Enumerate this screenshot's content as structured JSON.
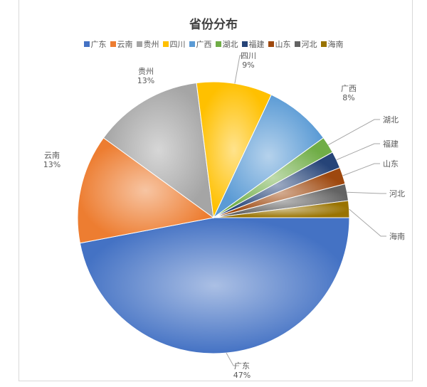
{
  "chart_data": {
    "type": "pie",
    "title": "省份分布",
    "legend_position": "top",
    "start_angle_deg": 90,
    "categories": [
      "广东",
      "云南",
      "贵州",
      "四川",
      "广西",
      "湖北",
      "福建",
      "山东",
      "河北",
      "海南"
    ],
    "values": [
      47,
      13,
      13,
      9,
      8,
      2,
      2,
      2,
      2,
      2
    ],
    "data_labels": [
      "广东\n47%",
      "云南\n13%",
      "贵州\n13%",
      "四川\n9%",
      "广西\n8%",
      "湖北",
      "福建",
      "山东",
      "河北",
      "海南"
    ],
    "colors": [
      "#4472c4",
      "#ed7d31",
      "#a5a5a5",
      "#ffc000",
      "#5b9bd5",
      "#70ad47",
      "#264478",
      "#9e480e",
      "#636363",
      "#997300"
    ]
  }
}
